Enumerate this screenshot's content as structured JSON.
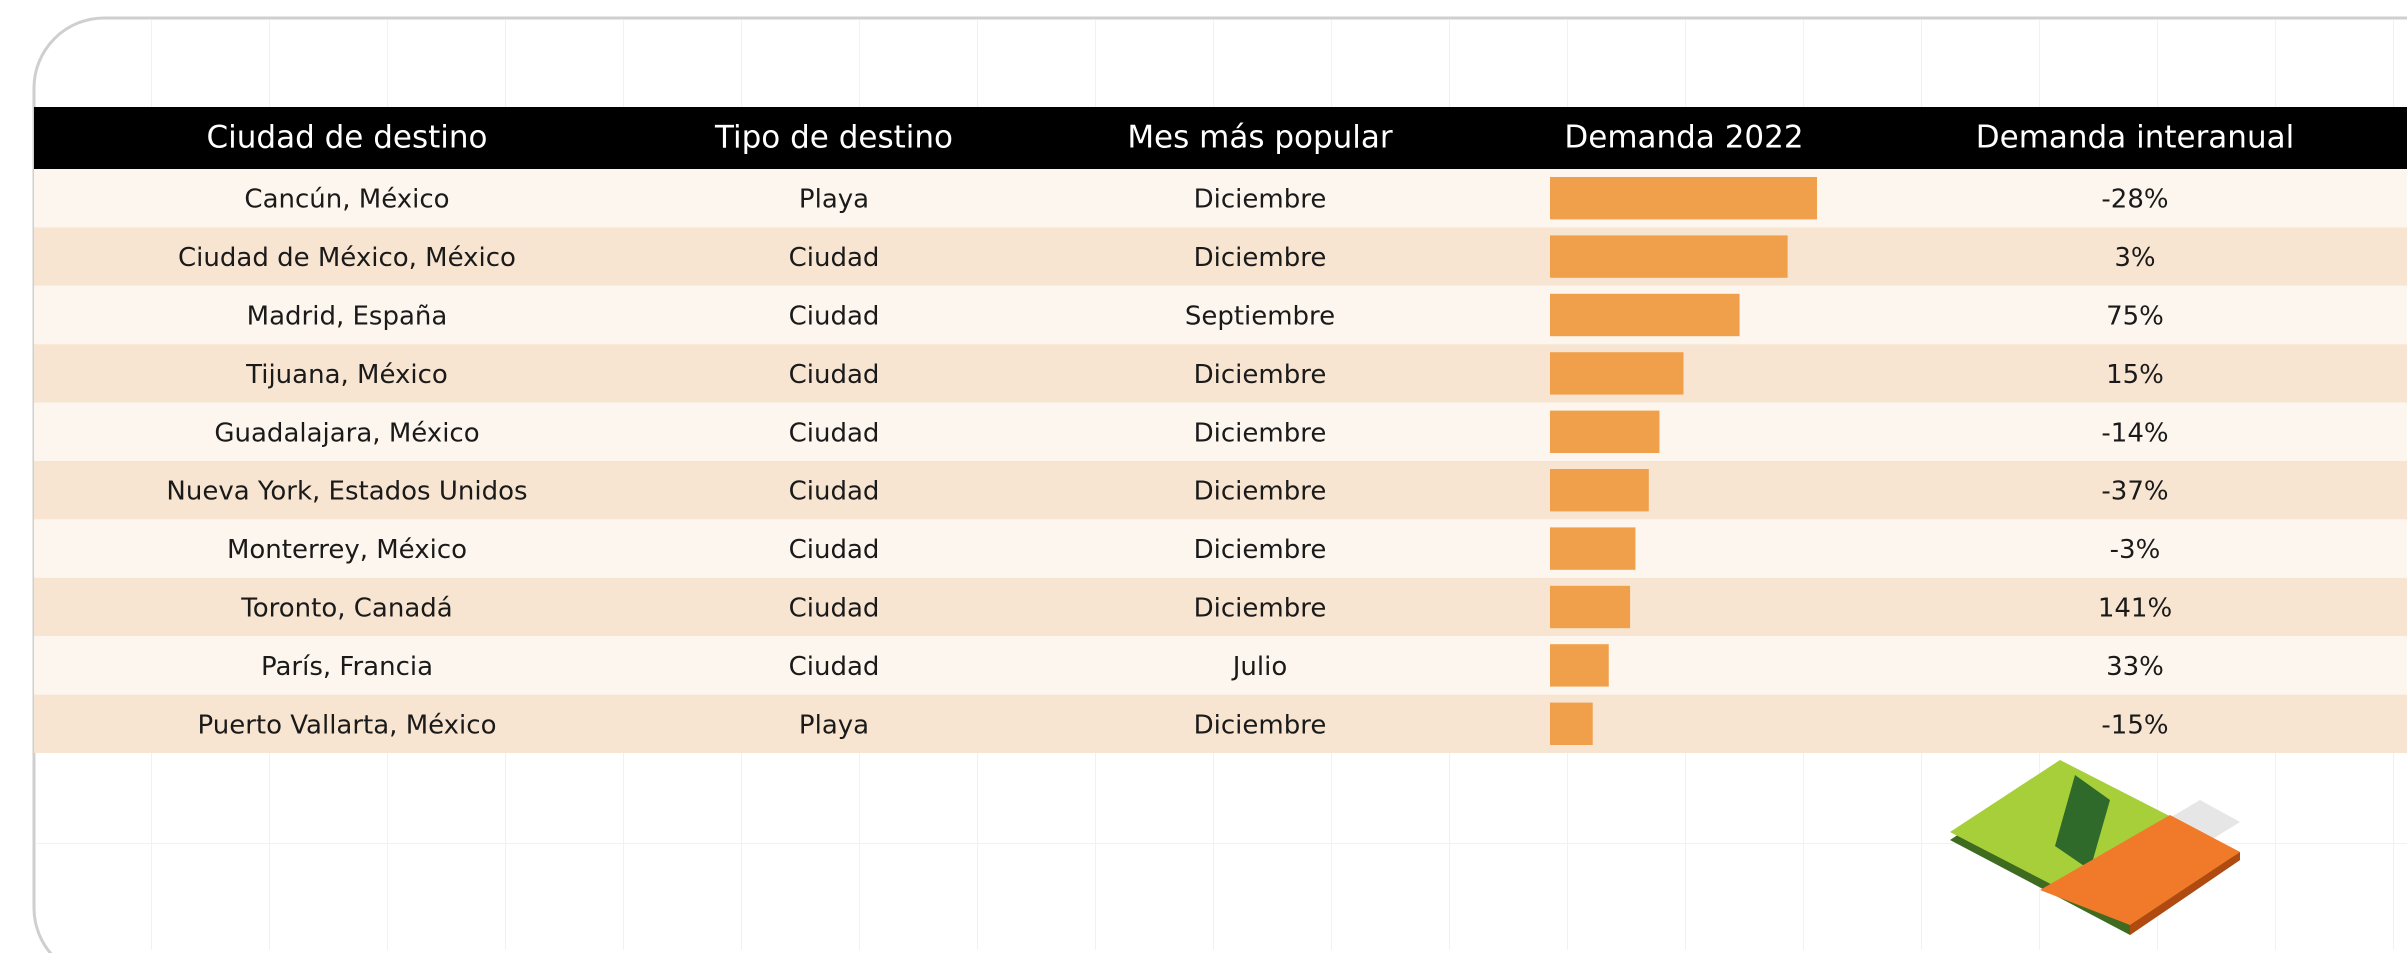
{
  "table": {
    "type": "bar",
    "columns": [
      "Ciudad de destino",
      "Tipo de destino",
      "Mes más popular",
      "Demanda 2022",
      "Demanda interanual"
    ],
    "rows": [
      [
        "Cancún, México",
        "Playa",
        "Diciembre",
        100,
        "-28%"
      ],
      [
        "Ciudad de México, México",
        "Ciudad",
        "Diciembre",
        89,
        "3%"
      ],
      [
        "Madrid, España",
        "Ciudad",
        "Septiembre",
        71,
        "75%"
      ],
      [
        "Tijuana, México",
        "Ciudad",
        "Diciembre",
        50,
        "15%"
      ],
      [
        "Guadalajara, México",
        "Ciudad",
        "Diciembre",
        41,
        "-14%"
      ],
      [
        "Nueva York, Estados Unidos",
        "Ciudad",
        "Diciembre",
        37,
        "-37%"
      ],
      [
        "Monterrey, México",
        "Ciudad",
        "Diciembre",
        32,
        "-3%"
      ],
      [
        "Toronto, Canadá",
        "Ciudad",
        "Diciembre",
        30,
        "141%"
      ],
      [
        "París, Francia",
        "Ciudad",
        "Julio",
        22,
        "33%"
      ],
      [
        "Puerto Vallarta, México",
        "Playa",
        "Diciembre",
        16,
        "-15%"
      ]
    ],
    "color": "#f0a04b"
  }
}
